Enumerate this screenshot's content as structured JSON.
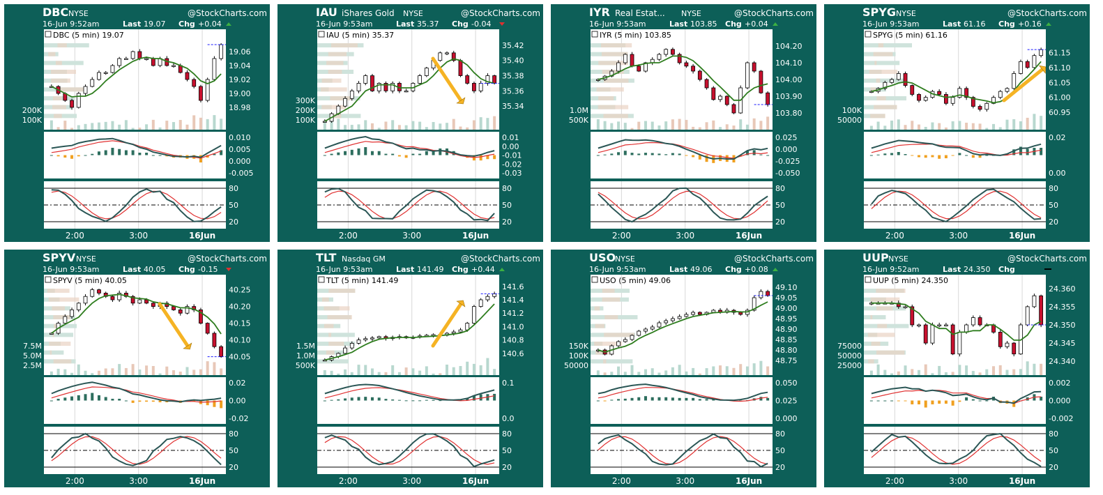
{
  "watermark": "@StockCharts.com",
  "interval_tag": "(5 min)",
  "labels": {
    "last": "Last",
    "chg": "Chg"
  },
  "colors": {
    "frame": "#0d5f58",
    "up": "#ffffff",
    "down": "#c8102e",
    "sma": "#2e7d1e",
    "macd": "#2a5655",
    "signal": "#e03030",
    "hist_pos": "#2d6e5e",
    "hist_neg": "#f0a020",
    "vol": "#b8d8cf",
    "vol_down": "#e8c8b8",
    "vbp_up": "#cfe3dc",
    "vbp_down": "#ead3c3",
    "arrow": "#f5b324",
    "last_line": "#1a1aff"
  },
  "x_ticks": [
    "2:00",
    "3:00",
    "16Jun"
  ],
  "stoch_levels": [
    "80",
    "50",
    "20"
  ],
  "chart_data": [
    {
      "type": "candlestick",
      "symbol": "DBC",
      "name": "",
      "exchange": "NYSE",
      "date": "16-Jun 9:52am",
      "last": "19.07",
      "chg": "+0.04",
      "chg_dir": "up",
      "legend": "DBC (5 min) 19.07",
      "ylim": [
        18.96,
        19.08
      ],
      "y_ticks": [
        "19.06",
        "19.04",
        "19.02",
        "19.00",
        "18.98"
      ],
      "vol_ticks": [
        "200K",
        "100K"
      ],
      "macd_ticks": [
        "0.010",
        "0.005",
        "0.000",
        "-0.005"
      ],
      "arrow": "none",
      "seed": 11,
      "series": [
        19.01,
        19.0,
        18.99,
        18.98,
        19.0,
        19.01,
        19.02,
        19.03,
        19.03,
        19.04,
        19.05,
        19.05,
        19.06,
        19.05,
        19.05,
        19.04,
        19.05,
        19.04,
        19.04,
        19.03,
        19.02,
        19.01,
        18.99,
        19.02,
        19.05,
        19.07
      ]
    },
    {
      "type": "candlestick",
      "symbol": "IAU",
      "name": "iShares Gold",
      "exchange": "NYSE",
      "date": "16-Jun 9:53am",
      "last": "35.37",
      "chg": "-0.04",
      "chg_dir": "down",
      "legend": "IAU (5 min) 35.37",
      "ylim": [
        35.32,
        35.43
      ],
      "y_ticks": [
        "35.42",
        "35.40",
        "35.38",
        "35.36",
        "35.34"
      ],
      "vol_ticks": [
        "300K",
        "200K",
        "100K"
      ],
      "macd_ticks": [
        "0.01",
        "0.00",
        "-0.01",
        "-0.02",
        "-0.03"
      ],
      "arrow": "down",
      "seed": 23,
      "series": [
        35.32,
        35.33,
        35.34,
        35.35,
        35.36,
        35.37,
        35.38,
        35.36,
        35.37,
        35.36,
        35.37,
        35.36,
        35.36,
        35.37,
        35.38,
        35.39,
        35.4,
        35.41,
        35.41,
        35.4,
        35.38,
        35.37,
        35.36,
        35.37,
        35.38,
        35.37
      ]
    },
    {
      "type": "candlestick",
      "symbol": "IYR",
      "name": "Real Estat...",
      "exchange": "NYSE",
      "date": "16-Jun 9:53am",
      "last": "103.85",
      "chg": "+0.04",
      "chg_dir": "up",
      "legend": "IYR (5 min) 103.85",
      "ylim": [
        103.75,
        104.25
      ],
      "y_ticks": [
        "104.20",
        "104.10",
        "104.00",
        "103.90",
        "103.80"
      ],
      "vol_ticks": [
        "1.0M",
        "500K"
      ],
      "macd_ticks": [
        "0.025",
        "0.000",
        "-0.025",
        "-0.050"
      ],
      "arrow": "none",
      "seed": 37,
      "series": [
        104.0,
        104.02,
        104.05,
        104.1,
        104.15,
        104.08,
        104.05,
        104.1,
        104.12,
        104.15,
        104.18,
        104.15,
        104.1,
        104.08,
        104.05,
        104.0,
        103.95,
        103.88,
        103.9,
        103.85,
        103.8,
        103.95,
        104.1,
        104.05,
        103.92,
        103.85
      ]
    },
    {
      "type": "candlestick",
      "symbol": "SPYG",
      "name": "",
      "exchange": "NYSE",
      "date": "16-Jun 9:53am",
      "last": "61.16",
      "chg": "+0.16",
      "chg_dir": "up",
      "legend": "SPYG (5 min) 61.16",
      "ylim": [
        60.92,
        61.2
      ],
      "y_ticks": [
        "61.15",
        "61.10",
        "61.05",
        "61.00",
        "60.95"
      ],
      "vol_ticks": [
        "100K",
        "50000"
      ],
      "macd_ticks": [
        "0.02",
        "0.00"
      ],
      "arrow": "up",
      "seed": 41,
      "series": [
        61.02,
        61.03,
        61.05,
        61.06,
        61.08,
        61.04,
        61.01,
        60.99,
        61.0,
        61.02,
        61.01,
        60.98,
        61.0,
        61.03,
        61.0,
        60.97,
        60.96,
        60.98,
        61.0,
        61.02,
        61.03,
        61.08,
        61.12,
        61.1,
        61.14,
        61.16
      ]
    },
    {
      "type": "candlestick",
      "symbol": "SPYV",
      "name": "",
      "exchange": "NYSE",
      "date": "16-Jun 9:53am",
      "last": "40.05",
      "chg": "-0.15",
      "chg_dir": "down",
      "legend": "SPYV (5 min) 40.05",
      "ylim": [
        40.02,
        40.27
      ],
      "y_ticks": [
        "40.25",
        "40.20",
        "40.15",
        "40.10",
        "40.05"
      ],
      "vol_ticks": [
        "7.5M",
        "5.0M",
        "2.5M"
      ],
      "macd_ticks": [
        "0.02",
        "0.00",
        "-0.02"
      ],
      "arrow": "down",
      "seed": 53,
      "series": [
        40.12,
        40.15,
        40.17,
        40.19,
        40.21,
        40.23,
        40.25,
        40.24,
        40.23,
        40.22,
        40.24,
        40.23,
        40.21,
        40.22,
        40.21,
        40.2,
        40.21,
        40.2,
        40.19,
        40.18,
        40.2,
        40.19,
        40.15,
        40.12,
        40.08,
        40.05
      ]
    },
    {
      "type": "candlestick",
      "symbol": "TLT",
      "name": "",
      "exchange": "Nasdaq GM",
      "date": "16-Jun 9:53am",
      "last": "141.49",
      "chg": "+0.44",
      "chg_dir": "up",
      "legend": "TLT (5 min) 141.49",
      "ylim": [
        140.4,
        141.65
      ],
      "y_ticks": [
        "141.6",
        "141.4",
        "141.2",
        "141.0",
        "140.8",
        "140.6"
      ],
      "vol_ticks": [
        "1.5M",
        "1.0M",
        "500K"
      ],
      "macd_ticks": [
        "0.1",
        "0.0"
      ],
      "arrow": "up",
      "seed": 67,
      "series": [
        140.5,
        140.55,
        140.6,
        140.68,
        140.75,
        140.8,
        140.82,
        140.83,
        140.85,
        140.82,
        140.84,
        140.85,
        140.83,
        140.84,
        140.86,
        140.87,
        140.88,
        140.87,
        140.9,
        140.92,
        140.95,
        141.05,
        141.3,
        141.4,
        141.45,
        141.49
      ]
    },
    {
      "type": "candlestick",
      "symbol": "USO",
      "name": "",
      "exchange": "NYSE",
      "date": "16-Jun 9:53am",
      "last": "49.06",
      "chg": "+0.08",
      "chg_dir": "up",
      "legend": "USO (5 min) 49.06",
      "ylim": [
        48.72,
        49.12
      ],
      "y_ticks": [
        "49.10",
        "49.05",
        "49.00",
        "48.95",
        "48.90",
        "48.85",
        "48.80",
        "48.75"
      ],
      "vol_ticks": [
        "150K",
        "100K",
        "50000"
      ],
      "macd_ticks": [
        "0.050",
        "0.025",
        "0.000"
      ],
      "arrow": "none",
      "seed": 79,
      "series": [
        48.8,
        48.78,
        48.82,
        48.84,
        48.85,
        48.87,
        48.89,
        48.9,
        48.91,
        48.93,
        48.94,
        48.95,
        48.96,
        48.97,
        48.98,
        48.97,
        48.98,
        48.99,
        48.98,
        48.99,
        48.98,
        48.97,
        48.99,
        49.05,
        49.08,
        49.06
      ]
    },
    {
      "type": "candlestick",
      "symbol": "UUP",
      "name": "",
      "exchange": "NYSE",
      "date": "16-Jun 9:52am",
      "last": "24.350",
      "chg": "",
      "chg_dir": "flat",
      "legend": "UUP (5 min) 24.350",
      "ylim": [
        24.3385,
        24.3615
      ],
      "y_ticks": [
        "24.360",
        "24.355",
        "24.350",
        "24.345",
        "24.340"
      ],
      "vol_ticks": [
        "75000",
        "50000",
        "25000"
      ],
      "macd_ticks": [
        "0.002",
        "0.000",
        "-0.002"
      ],
      "arrow": "none",
      "seed": 91,
      "series": [
        24.356,
        24.356,
        24.356,
        24.356,
        24.355,
        24.355,
        24.35,
        24.35,
        24.345,
        24.35,
        24.35,
        24.35,
        24.342,
        24.348,
        24.35,
        24.352,
        24.35,
        24.35,
        24.348,
        24.344,
        24.345,
        24.342,
        24.35,
        24.355,
        24.358,
        24.35
      ]
    }
  ]
}
